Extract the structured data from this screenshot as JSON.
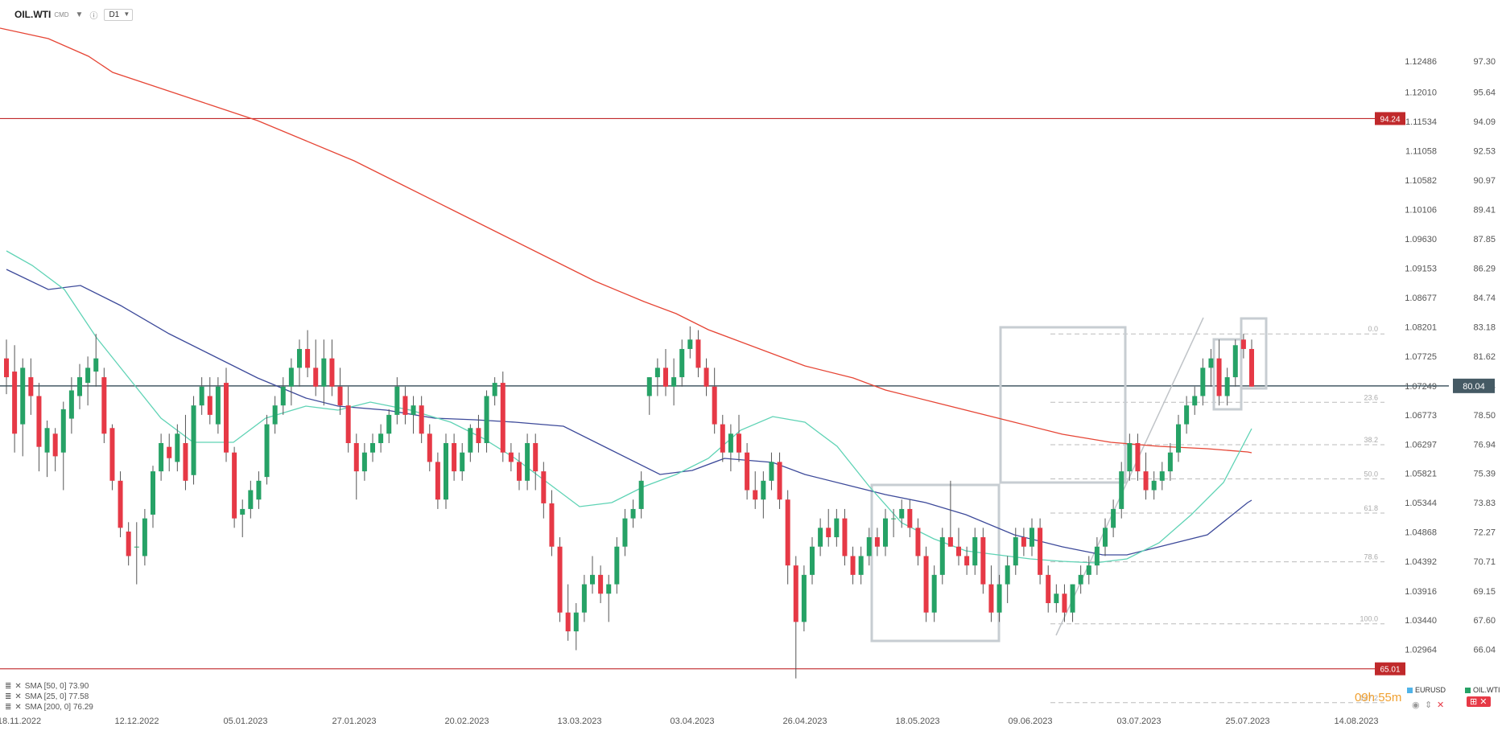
{
  "header": {
    "symbol": "OIL.WTI",
    "source": "CMD",
    "timeframe": "D1"
  },
  "colors": {
    "bull": "#26a266",
    "bear": "#e63946",
    "sma50": "#3d4a9a",
    "sma25": "#5fd3b5",
    "sma200": "#e64535",
    "level": "#c0292b",
    "current": "#455a64",
    "box": "#c7cdd2"
  },
  "legend": [
    {
      "label": "SMA [50, 0] 73.90"
    },
    {
      "label": "SMA [25, 0] 77.58"
    },
    {
      "label": "SMA [200, 0] 76.29"
    }
  ],
  "countdown": "09h 55m",
  "legend_symbols": [
    "EURUSD",
    "OIL.WTI"
  ],
  "chart_data": {
    "type": "candlestick",
    "title": "OIL.WTI",
    "x_tick_labels": [
      "18.11.2022",
      "12.12.2022",
      "05.01.2023",
      "27.01.2023",
      "20.02.2023",
      "13.03.2023",
      "03.04.2023",
      "26.04.2023",
      "18.05.2023",
      "09.06.2023",
      "03.07.2023",
      "25.07.2023",
      "14.08.2023"
    ],
    "ylim": [
      63.8,
      99.0
    ],
    "y_ticks": [
      97.3,
      95.64,
      94.09,
      92.53,
      90.97,
      89.41,
      87.85,
      86.29,
      84.74,
      83.18,
      81.62,
      80.04,
      78.5,
      76.94,
      75.39,
      73.83,
      72.27,
      70.71,
      69.15,
      67.6,
      66.04
    ],
    "secondary_axis_label": "EURUSD",
    "secondary_ticks": [
      "1.12486",
      "1.12010",
      "1.11534",
      "1.11058",
      "1.10582",
      "1.10106",
      "1.09630",
      "1.09153",
      "1.08677",
      "1.08201",
      "1.07725",
      "1.07249",
      "1.06773",
      "1.06297",
      "1.05821",
      "1.05344",
      "1.04868",
      "1.04392",
      "1.03916",
      "1.03440",
      "1.02964"
    ],
    "horizontal_levels": [
      {
        "name": "resistance",
        "value": 94.24,
        "label": "94.24"
      },
      {
        "name": "support",
        "value": 65.01,
        "label": "65.01"
      }
    ],
    "current_price": {
      "value": 80.04,
      "label": "80.04"
    },
    "fibonacci": {
      "high": 82.8,
      "low": 67.4,
      "levels": [
        "0.0",
        "23.6",
        "38.2",
        "50.0",
        "61.8",
        "78.6",
        "100.0",
        "127.2"
      ]
    },
    "candles_ohlc": [
      [
        81.5,
        82.5,
        79.6,
        80.5
      ],
      [
        80.8,
        82.2,
        76.5,
        77.5
      ],
      [
        78.0,
        81.5,
        76.3,
        81.0
      ],
      [
        80.5,
        81.5,
        78.5,
        79.5
      ],
      [
        79.5,
        80.2,
        75.5,
        76.8
      ],
      [
        76.5,
        78.2,
        75.2,
        77.8
      ],
      [
        77.5,
        77.8,
        75.5,
        76.3
      ],
      [
        76.5,
        79.2,
        74.5,
        78.8
      ],
      [
        78.3,
        80.5,
        77.5,
        79.8
      ],
      [
        79.5,
        81.2,
        78.8,
        80.5
      ],
      [
        80.2,
        81.6,
        79.0,
        81.0
      ],
      [
        80.8,
        82.8,
        80.0,
        81.5
      ],
      [
        80.5,
        81.0,
        77.0,
        77.5
      ],
      [
        77.8,
        78.0,
        74.5,
        75.0
      ],
      [
        75.0,
        75.5,
        72.0,
        72.5
      ],
      [
        72.3,
        72.8,
        70.5,
        71.0
      ],
      [
        71.5,
        72.8,
        69.5,
        71.5
      ],
      [
        71.0,
        73.5,
        70.5,
        73.0
      ],
      [
        73.2,
        75.8,
        72.5,
        75.5
      ],
      [
        75.5,
        77.5,
        75.0,
        77.0
      ],
      [
        76.8,
        77.5,
        75.5,
        76.2
      ],
      [
        76.0,
        78.0,
        75.5,
        77.5
      ],
      [
        77.0,
        78.5,
        74.5,
        75.0
      ],
      [
        75.3,
        79.5,
        74.8,
        79.0
      ],
      [
        79.0,
        80.5,
        78.5,
        80.0
      ],
      [
        79.5,
        80.5,
        78.0,
        78.5
      ],
      [
        78.0,
        80.5,
        77.5,
        80.0
      ],
      [
        80.2,
        81.0,
        76.0,
        76.5
      ],
      [
        76.5,
        76.8,
        72.5,
        73.0
      ],
      [
        73.2,
        74.0,
        72.0,
        73.5
      ],
      [
        73.5,
        75.0,
        73.0,
        74.5
      ],
      [
        74.0,
        75.5,
        73.5,
        75.0
      ],
      [
        75.2,
        78.5,
        74.8,
        78.0
      ],
      [
        78.0,
        79.5,
        77.5,
        79.0
      ],
      [
        79.0,
        80.5,
        78.5,
        80.0
      ],
      [
        80.0,
        81.5,
        79.0,
        81.0
      ],
      [
        81.0,
        82.5,
        80.0,
        82.0
      ],
      [
        82.0,
        83.0,
        80.5,
        81.0
      ],
      [
        81.0,
        82.5,
        79.5,
        80.0
      ],
      [
        80.0,
        82.5,
        79.0,
        81.5
      ],
      [
        81.5,
        82.5,
        79.5,
        80.0
      ],
      [
        80.0,
        81.0,
        78.5,
        79.0
      ],
      [
        79.0,
        80.0,
        76.5,
        77.0
      ],
      [
        77.0,
        77.5,
        74.0,
        75.5
      ],
      [
        75.5,
        77.0,
        75.0,
        76.5
      ],
      [
        76.5,
        77.5,
        76.0,
        77.0
      ],
      [
        77.0,
        78.0,
        76.5,
        77.5
      ],
      [
        77.5,
        78.8,
        77.0,
        78.5
      ],
      [
        78.5,
        80.5,
        78.0,
        80.0
      ],
      [
        79.5,
        80.0,
        78.0,
        78.5
      ],
      [
        78.5,
        79.5,
        77.5,
        79.0
      ],
      [
        79.0,
        79.5,
        77.0,
        77.5
      ],
      [
        77.5,
        78.0,
        75.5,
        76.0
      ],
      [
        76.0,
        76.5,
        73.5,
        74.0
      ],
      [
        74.0,
        77.5,
        73.5,
        77.0
      ],
      [
        77.0,
        77.5,
        75.0,
        75.5
      ],
      [
        75.5,
        77.0,
        75.0,
        76.5
      ],
      [
        76.5,
        78.0,
        76.0,
        77.8
      ],
      [
        77.8,
        78.5,
        76.5,
        77.0
      ],
      [
        77.0,
        79.8,
        76.5,
        79.5
      ],
      [
        79.5,
        80.5,
        79.0,
        80.2
      ],
      [
        80.2,
        80.8,
        76.0,
        76.5
      ],
      [
        76.5,
        77.0,
        75.5,
        76.0
      ],
      [
        76.0,
        76.5,
        74.5,
        75.0
      ],
      [
        75.0,
        77.5,
        74.5,
        77.0
      ],
      [
        77.0,
        77.5,
        74.5,
        75.5
      ],
      [
        75.5,
        76.0,
        73.0,
        73.8
      ],
      [
        73.8,
        74.5,
        71.0,
        71.5
      ],
      [
        71.5,
        72.0,
        67.5,
        68.0
      ],
      [
        68.0,
        69.5,
        66.5,
        67.0
      ],
      [
        67.0,
        68.5,
        66.0,
        68.0
      ],
      [
        68.0,
        70.0,
        67.5,
        69.5
      ],
      [
        69.5,
        71.0,
        69.0,
        70.0
      ],
      [
        70.0,
        70.5,
        68.5,
        69.0
      ],
      [
        69.0,
        70.0,
        67.5,
        69.5
      ],
      [
        69.5,
        72.0,
        69.0,
        71.5
      ],
      [
        71.5,
        73.5,
        71.0,
        73.0
      ],
      [
        73.0,
        74.0,
        72.5,
        73.5
      ],
      [
        73.5,
        75.5,
        73.0,
        75.0
      ],
      [
        79.5,
        80.5,
        78.5,
        80.5
      ],
      [
        80.5,
        81.5,
        79.5,
        81.0
      ],
      [
        81.0,
        82.0,
        79.5,
        80.0
      ],
      [
        80.0,
        81.5,
        79.0,
        80.5
      ],
      [
        80.5,
        82.5,
        80.0,
        82.0
      ],
      [
        82.0,
        83.2,
        81.5,
        82.5
      ],
      [
        82.5,
        83.0,
        80.5,
        81.0
      ],
      [
        81.0,
        81.5,
        79.5,
        80.0
      ],
      [
        80.0,
        81.0,
        77.5,
        78.0
      ],
      [
        78.0,
        78.5,
        76.0,
        76.5
      ],
      [
        76.5,
        78.0,
        75.5,
        77.5
      ],
      [
        77.5,
        78.5,
        76.0,
        76.5
      ],
      [
        76.5,
        77.0,
        74.0,
        74.5
      ],
      [
        74.5,
        75.5,
        73.5,
        74.0
      ],
      [
        74.0,
        75.5,
        73.0,
        75.0
      ],
      [
        75.0,
        76.5,
        74.5,
        76.0
      ],
      [
        76.0,
        76.5,
        73.5,
        74.0
      ],
      [
        74.0,
        74.5,
        69.5,
        70.5
      ],
      [
        70.5,
        71.0,
        64.5,
        67.5
      ],
      [
        67.5,
        70.5,
        67.0,
        70.0
      ],
      [
        70.0,
        72.0,
        69.5,
        71.5
      ],
      [
        71.5,
        73.0,
        71.0,
        72.5
      ],
      [
        72.5,
        73.5,
        71.5,
        72.0
      ],
      [
        72.0,
        73.5,
        71.5,
        73.0
      ],
      [
        73.0,
        73.5,
        70.5,
        71.0
      ],
      [
        71.0,
        71.5,
        69.5,
        70.0
      ],
      [
        70.0,
        71.5,
        69.5,
        71.0
      ],
      [
        71.0,
        72.5,
        70.5,
        72.0
      ],
      [
        72.0,
        72.5,
        71.0,
        71.5
      ],
      [
        71.5,
        73.5,
        71.0,
        73.0
      ],
      [
        73.0,
        73.5,
        72.0,
        73.0
      ],
      [
        73.0,
        74.0,
        72.5,
        73.5
      ],
      [
        73.5,
        74.0,
        72.0,
        72.5
      ],
      [
        72.5,
        73.0,
        70.5,
        71.0
      ],
      [
        71.0,
        71.5,
        67.5,
        68.0
      ],
      [
        68.0,
        70.5,
        67.5,
        70.0
      ],
      [
        70.0,
        72.5,
        69.5,
        72.0
      ],
      [
        72.0,
        75.0,
        71.5,
        71.5
      ],
      [
        71.5,
        72.5,
        70.5,
        71.0
      ],
      [
        71.0,
        71.5,
        70.0,
        70.5
      ],
      [
        70.5,
        72.5,
        70.0,
        72.0
      ],
      [
        72.0,
        72.5,
        69.0,
        69.5
      ],
      [
        69.5,
        70.5,
        67.5,
        68.0
      ],
      [
        68.0,
        70.0,
        67.5,
        69.5
      ],
      [
        69.5,
        71.0,
        68.5,
        70.5
      ],
      [
        70.5,
        72.5,
        70.0,
        72.0
      ],
      [
        72.0,
        72.5,
        71.0,
        71.5
      ],
      [
        71.5,
        73.0,
        71.0,
        72.5
      ],
      [
        72.5,
        73.0,
        69.5,
        70.0
      ],
      [
        70.0,
        70.5,
        68.0,
        68.5
      ],
      [
        68.5,
        69.5,
        68.0,
        69.0
      ],
      [
        69.0,
        69.5,
        67.5,
        68.0
      ],
      [
        68.0,
        69.5,
        67.5,
        69.5
      ],
      [
        69.5,
        70.5,
        69.0,
        70.0
      ],
      [
        70.0,
        71.0,
        69.5,
        70.5
      ],
      [
        70.5,
        72.0,
        70.0,
        71.5
      ],
      [
        71.5,
        73.0,
        71.0,
        72.5
      ],
      [
        72.5,
        74.0,
        72.0,
        73.5
      ],
      [
        73.5,
        76.0,
        73.0,
        75.5
      ],
      [
        75.5,
        77.5,
        75.0,
        77.0
      ],
      [
        77.0,
        77.5,
        75.0,
        75.5
      ],
      [
        75.5,
        76.5,
        74.0,
        74.5
      ],
      [
        74.5,
        75.5,
        74.0,
        75.0
      ],
      [
        75.0,
        76.0,
        74.5,
        75.5
      ],
      [
        75.5,
        77.0,
        75.0,
        76.5
      ],
      [
        76.5,
        78.5,
        76.0,
        78.0
      ],
      [
        78.0,
        79.5,
        77.5,
        79.0
      ],
      [
        79.0,
        80.0,
        78.5,
        79.5
      ],
      [
        79.5,
        81.5,
        79.0,
        81.0
      ],
      [
        81.0,
        82.0,
        80.0,
        81.5
      ],
      [
        81.5,
        82.5,
        79.0,
        79.5
      ],
      [
        79.5,
        81.0,
        79.0,
        80.5
      ],
      [
        80.5,
        82.5,
        80.0,
        82.2
      ],
      [
        82.5,
        82.8,
        81.5,
        82.0
      ],
      [
        82.0,
        82.5,
        80.0,
        80.0
      ]
    ]
  }
}
